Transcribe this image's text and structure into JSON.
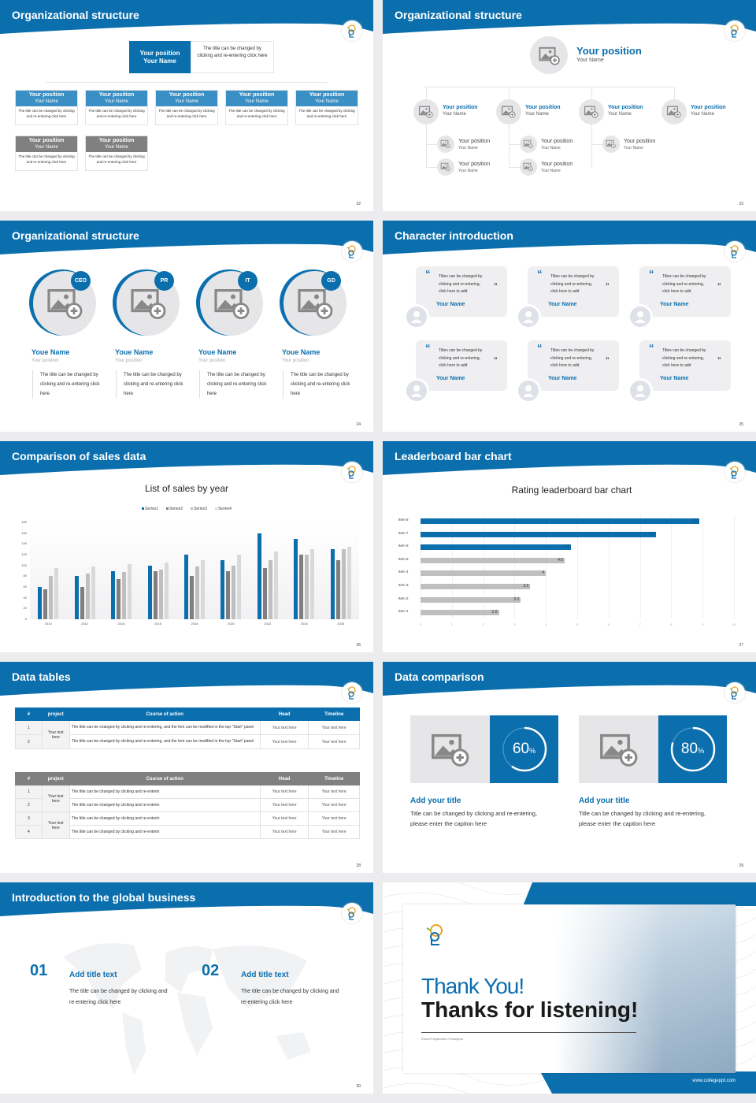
{
  "brand": {
    "blue": "#0b6fae",
    "light_blue": "#3a8fc4",
    "gray": "#808080",
    "placeholder": "#e6e6e8"
  },
  "slides": [
    {
      "id": "s22",
      "title": "Organizational structure",
      "page": "22",
      "top": {
        "position": "Your position",
        "name": "Your Name",
        "desc": "The title can be changed by clicking and re-entering click here"
      },
      "row1": [
        {
          "position": "Your position",
          "name": "Your Name",
          "desc": "The title can be changed by clicking and re-entering click here"
        },
        {
          "position": "Your position",
          "name": "Your Name",
          "desc": "The title can be changed by clicking and re-entering click here"
        },
        {
          "position": "Your position",
          "name": "Your Name",
          "desc": "The title can be changed by clicking and re-entering click here"
        },
        {
          "position": "Your position",
          "name": "Your Name",
          "desc": "The title can be changed by clicking and re-entering click here"
        },
        {
          "position": "Your position",
          "name": "Your Name",
          "desc": "The title can be changed by clicking and re-entering click here"
        }
      ],
      "row2": [
        {
          "position": "Your position",
          "name": "Your Name",
          "desc": "The title can be changed by clicking and re-entering click here"
        },
        {
          "position": "Your position",
          "name": "Your Name",
          "desc": "The title can be changed by clicking and re-entering click here"
        }
      ]
    },
    {
      "id": "s23",
      "title": "Organizational structure",
      "page": "23",
      "top": {
        "position": "Your position",
        "name": "Your Name"
      },
      "nodes": [
        {
          "position": "Your position",
          "name": "Your Name",
          "children": [
            {
              "position": "Your position",
              "name": "Your Name"
            },
            {
              "position": "Your position",
              "name": "Your Name"
            }
          ]
        },
        {
          "position": "Your position",
          "name": "Your Name",
          "children": [
            {
              "position": "Your position",
              "name": "Your Name"
            },
            {
              "position": "Your position",
              "name": "Your Name"
            }
          ]
        },
        {
          "position": "Your position",
          "name": "Your Name",
          "children": [
            {
              "position": "Your position",
              "name": "Your Name"
            }
          ]
        },
        {
          "position": "Your position",
          "name": "Your Name",
          "children": []
        }
      ]
    },
    {
      "id": "s24",
      "title": "Organizational structure",
      "page": "24",
      "people": [
        {
          "badge": "CEO",
          "name": "Youe Name",
          "position": "Your position",
          "desc": "The title can be changed by clicking and re-entering click here"
        },
        {
          "badge": "PR",
          "name": "Youe Name",
          "position": "Your position",
          "desc": "The title can be changed by clicking and re-entering click here"
        },
        {
          "badge": "IT",
          "name": "Youe Name",
          "position": "Your position",
          "desc": "The title can be changed by clicking and re-entering click here"
        },
        {
          "badge": "GD",
          "name": "Youe Name",
          "position": "Your position",
          "desc": "The title can be changed by clicking and re-entering click here"
        }
      ]
    },
    {
      "id": "s25",
      "title": "Character introduction",
      "page": "25",
      "cards": [
        {
          "quote": "Titles can be changed by clicking and re-entering, click here to add",
          "name": "Your Name"
        },
        {
          "quote": "Titles can be changed by clicking and re-entering, click here to add",
          "name": "Your Name"
        },
        {
          "quote": "Titles can be changed by clicking and re-entering, click here to add",
          "name": "Your Name"
        },
        {
          "quote": "Titles can be changed by clicking and re-entering, click here to add",
          "name": "Your Name"
        },
        {
          "quote": "Titles can be changed by clicking and re-entering, click here to add",
          "name": "Your Name"
        },
        {
          "quote": "Titles can be changed by clicking and re-entering, click here to add",
          "name": "Your Name"
        }
      ]
    },
    {
      "id": "s26",
      "title": "Comparison of sales data",
      "page": "26"
    },
    {
      "id": "s27",
      "title": "Leaderboard bar chart",
      "page": "27"
    },
    {
      "id": "s28",
      "title": "Data tables",
      "page": "28",
      "table1": {
        "headers": [
          "#",
          "project",
          "Course of action",
          "Head",
          "Timeline"
        ],
        "project": "Your text here",
        "rows": [
          [
            "1",
            "The title can be changed by clicking and re-entering, and the font can be modified in the top \"Start\" panel",
            "Your text here",
            "Your text here"
          ],
          [
            "2",
            "The title can be changed by clicking and re-entering, and the font can be modified in the top \"Start\" panel",
            "Your text here",
            "Your text here"
          ]
        ]
      },
      "table2": {
        "headers": [
          "#",
          "project",
          "Course of action",
          "Head",
          "Timeline"
        ],
        "projects": [
          "Your text here",
          "Your text here"
        ],
        "rows": [
          [
            "1",
            "The title can be changed by clicking and re-enterin",
            "Your text here",
            "Your text here"
          ],
          [
            "2",
            "The title can be changed by clicking and re-enterin",
            "Your text here",
            "Your text here"
          ],
          [
            "3",
            "The title can be changed by clicking and re-enterin",
            "Your text here",
            "Your text here"
          ],
          [
            "4",
            "The title can be changed by clicking and re-enterin",
            "Your text here",
            "Your text here"
          ]
        ]
      }
    },
    {
      "id": "s29",
      "title": "Data comparison",
      "page": "29",
      "items": [
        {
          "percent": 60,
          "value": "60",
          "unit": "%",
          "title": "Add your title",
          "caption": "Title can be changed by clicking and re-entering, please enter the caption here"
        },
        {
          "percent": 80,
          "value": "80",
          "unit": "%",
          "title": "Add your title",
          "caption": "Title can be changed by clicking and re-entering, please enter the caption here"
        }
      ]
    },
    {
      "id": "s30",
      "title": "Introduction to the global business",
      "page": "30",
      "items": [
        {
          "num": "01",
          "title": "Add title text",
          "desc": "The title can be changed by clicking and re-entering click here"
        },
        {
          "num": "02",
          "title": "Add title text",
          "desc": "The title can be changed by clicking and re-entering click here"
        }
      ]
    },
    {
      "id": "s31",
      "thanks": "Thank You!",
      "listening": "Thanks for listening!",
      "subtitle": "Korea Polytechnic IV Daejeon",
      "website": "www.collegeppt.com"
    }
  ],
  "chart_data": [
    {
      "type": "bar",
      "title": "List of sales by year",
      "categories": [
        "2010",
        "2012",
        "2014",
        "2016",
        "2018",
        "2020",
        "2022",
        "2024",
        "2026"
      ],
      "series": [
        {
          "name": "Series1",
          "color": "#0b6fae",
          "values": [
            60,
            80,
            90,
            100,
            120,
            110,
            160,
            150,
            130
          ]
        },
        {
          "name": "Series2",
          "color": "#7f7f7f",
          "values": [
            55,
            60,
            75,
            90,
            80,
            90,
            95,
            120,
            110
          ]
        },
        {
          "name": "Series3",
          "color": "#bfbfbf",
          "values": [
            80,
            85,
            88,
            92,
            98,
            100,
            110,
            120,
            130
          ]
        },
        {
          "name": "Series4",
          "color": "#d9d9d9",
          "values": [
            95,
            98,
            102,
            105,
            110,
            120,
            126,
            130,
            135
          ]
        }
      ],
      "ylim": [
        0,
        180
      ],
      "yticks": [
        0,
        20,
        40,
        60,
        80,
        100,
        120,
        140,
        160,
        180
      ],
      "legend": "top",
      "grid": false
    },
    {
      "type": "bar",
      "orientation": "horizontal",
      "title": "Rating leaderboard bar chart",
      "categories": [
        "Item 8",
        "Item 7",
        "Item 6",
        "Item 5",
        "Item 4",
        "Item 3",
        "Item 2",
        "Item 1"
      ],
      "values": [
        8.9,
        7.5,
        4.8,
        4.6,
        4,
        3.5,
        3.2,
        2.5
      ],
      "colors": [
        "#0b6fae",
        "#0b6fae",
        "#0b6fae",
        "#bfbfbf",
        "#bfbfbf",
        "#bfbfbf",
        "#bfbfbf",
        "#bfbfbf"
      ],
      "xlim": [
        0,
        10
      ],
      "xticks": [
        0,
        1,
        2,
        3,
        4,
        5,
        6,
        7,
        8,
        9,
        10
      ],
      "grid": true
    }
  ]
}
